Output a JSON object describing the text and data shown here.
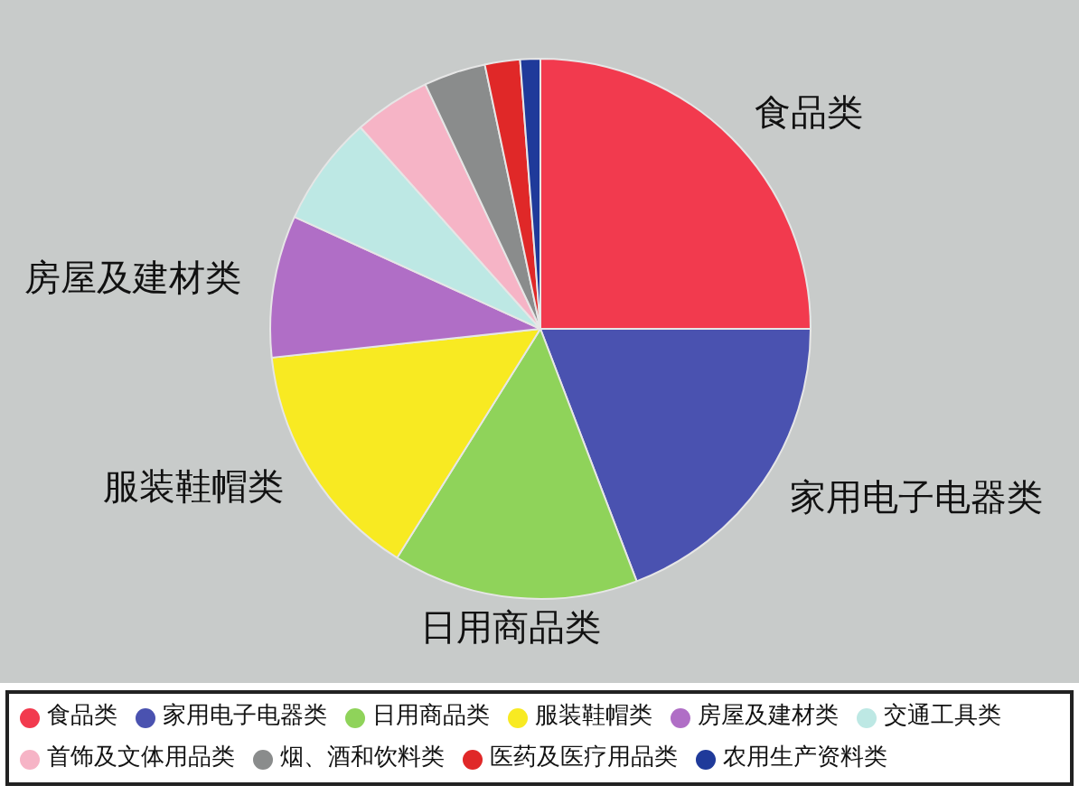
{
  "chart_data": {
    "type": "pie",
    "categories": [
      "食品类",
      "家用电子电器类",
      "日用商品类",
      "服装鞋帽类",
      "房屋及建材类",
      "交通工具类",
      "首饰及文体用品类",
      "烟、酒和饮料类",
      "医药及医疗用品类",
      "农用生产资料类"
    ],
    "values": [
      25,
      19.2,
      14.7,
      14.4,
      8.5,
      6.6,
      4.6,
      3.7,
      2.1,
      1.2
    ],
    "colors": [
      "#f23a4e",
      "#4a52b0",
      "#8fd35a",
      "#f8ea22",
      "#b06ec6",
      "#bde8e4",
      "#f6b4c6",
      "#8a8c8c",
      "#e02828",
      "#1f3a9a"
    ],
    "value_labels": [
      "食品类",
      "家用电子电器类",
      "日用商品类",
      "服装鞋帽类",
      "房屋及建材类",
      null,
      null,
      null,
      null,
      null
    ],
    "legend": "bottom"
  }
}
